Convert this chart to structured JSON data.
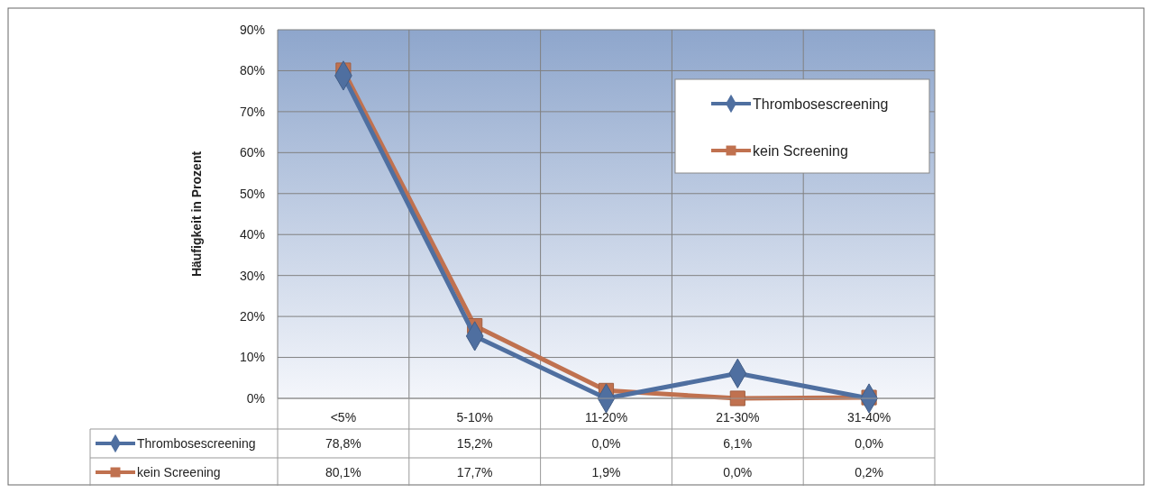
{
  "chart_data": {
    "type": "line",
    "ylabel": "Häufigkeit in Prozent",
    "categories": [
      "<5%",
      "5-10%",
      "11-20%",
      "21-30%",
      "31-40%"
    ],
    "series": [
      {
        "name": "Thrombosescreening",
        "color": "#4f6fa0",
        "marker": "diamond",
        "values": [
          78.8,
          15.2,
          0.0,
          6.1,
          0.0
        ],
        "value_labels": [
          "78,8%",
          "15,2%",
          "0,0%",
          "6,1%",
          "0,0%"
        ]
      },
      {
        "name": "kein Screening",
        "color": "#c0714f",
        "marker": "square",
        "values": [
          80.1,
          17.7,
          1.9,
          0.0,
          0.2
        ],
        "value_labels": [
          "80,1%",
          "17,7%",
          "1,9%",
          "0,0%",
          "0,2%"
        ]
      }
    ],
    "ylim": [
      0,
      90
    ],
    "yticks": [
      {
        "value": 0,
        "label": "0%"
      },
      {
        "value": 10,
        "label": "10%"
      },
      {
        "value": 20,
        "label": "20%"
      },
      {
        "value": 30,
        "label": "30%"
      },
      {
        "value": 40,
        "label": "40%"
      },
      {
        "value": 50,
        "label": "50%"
      },
      {
        "value": 60,
        "label": "60%"
      },
      {
        "value": 70,
        "label": "70%"
      },
      {
        "value": 80,
        "label": "80%"
      },
      {
        "value": 90,
        "label": "90%"
      }
    ],
    "grid": true,
    "legend": "top right",
    "line_style": "solid"
  }
}
